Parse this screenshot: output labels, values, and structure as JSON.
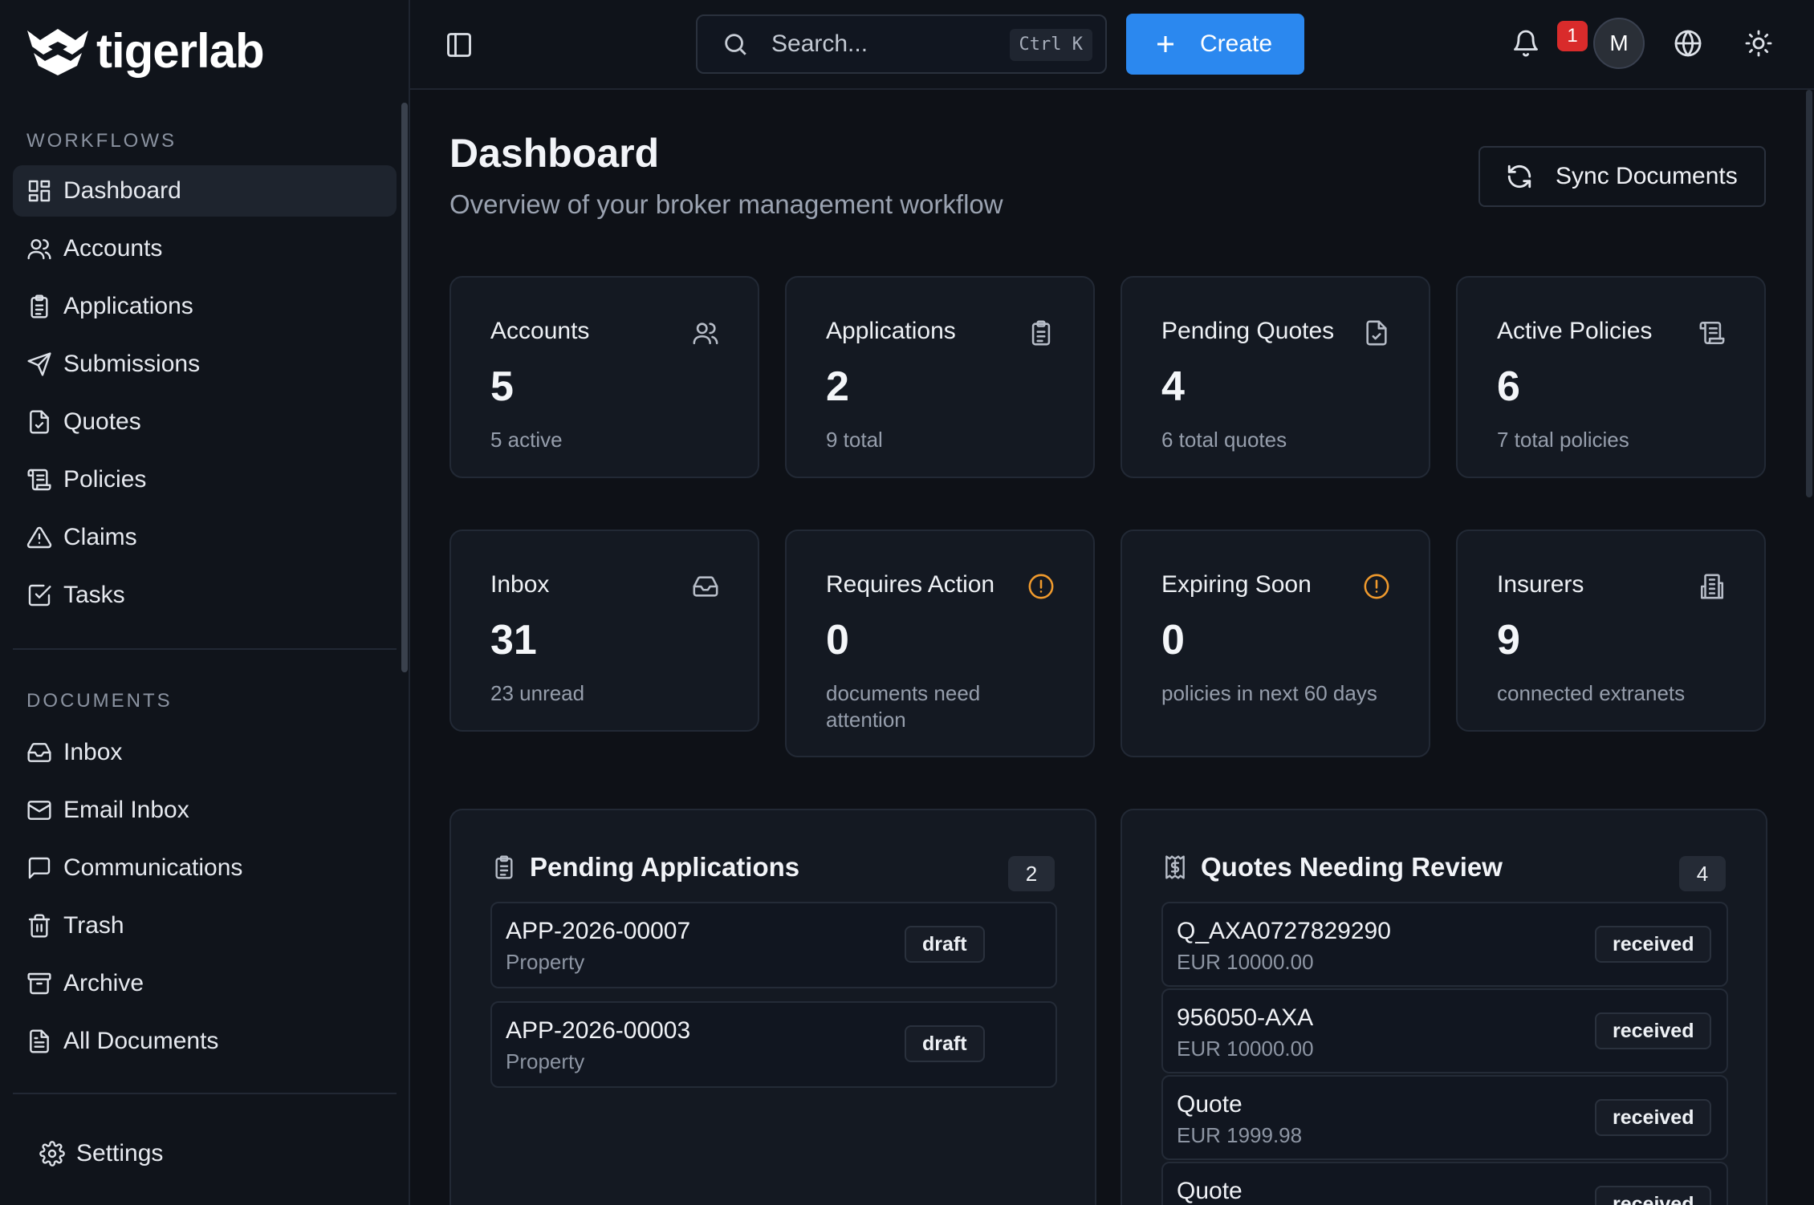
{
  "brand": {
    "name": "tigerlab"
  },
  "sidebar": {
    "workflows_label": "WORKFLOWS",
    "workflows": [
      {
        "label": "Dashboard",
        "icon": "dashboard-icon",
        "active": true
      },
      {
        "label": "Accounts",
        "icon": "users-icon"
      },
      {
        "label": "Applications",
        "icon": "clipboard-icon"
      },
      {
        "label": "Submissions",
        "icon": "send-icon"
      },
      {
        "label": "Quotes",
        "icon": "file-check-icon"
      },
      {
        "label": "Policies",
        "icon": "scroll-icon"
      },
      {
        "label": "Claims",
        "icon": "alert-triangle-icon"
      },
      {
        "label": "Tasks",
        "icon": "check-square-icon"
      }
    ],
    "documents_label": "DOCUMENTS",
    "documents": [
      {
        "label": "Inbox",
        "icon": "inbox-icon"
      },
      {
        "label": "Email Inbox",
        "icon": "mail-icon"
      },
      {
        "label": "Communications",
        "icon": "message-icon"
      },
      {
        "label": "Trash",
        "icon": "trash-icon"
      },
      {
        "label": "Archive",
        "icon": "archive-icon"
      },
      {
        "label": "All Documents",
        "icon": "file-text-icon"
      }
    ],
    "settings_label": "Settings"
  },
  "header": {
    "search_placeholder": "Search...",
    "shortcut": "Ctrl K",
    "create_label": "Create",
    "notification_count": "1",
    "avatar_initial": "M"
  },
  "page": {
    "title": "Dashboard",
    "subtitle": "Overview of your broker management workflow",
    "sync_label": "Sync Documents"
  },
  "stats": [
    {
      "title": "Accounts",
      "value": "5",
      "note": "5 active",
      "icon": "users-icon"
    },
    {
      "title": "Applications",
      "value": "2",
      "note": "9 total",
      "icon": "clipboard-icon"
    },
    {
      "title": "Pending Quotes",
      "value": "4",
      "note": "6 total quotes",
      "icon": "file-check-icon"
    },
    {
      "title": "Active Policies",
      "value": "6",
      "note": "7 total policies",
      "icon": "scroll-icon"
    },
    {
      "title": "Inbox",
      "value": "31",
      "note": "23 unread",
      "icon": "inbox-icon"
    },
    {
      "title": "Requires Action",
      "value": "0",
      "note": "documents need attention",
      "icon": "alert-circle-icon"
    },
    {
      "title": "Expiring Soon",
      "value": "0",
      "note": "policies in next 60 days",
      "icon": "alert-circle-icon"
    },
    {
      "title": "Insurers",
      "value": "9",
      "note": "connected extranets",
      "icon": "building-icon"
    }
  ],
  "pending_applications": {
    "title": "Pending Applications",
    "count": "2",
    "items": [
      {
        "id": "APP-2026-00007",
        "type": "Property",
        "status": "draft"
      },
      {
        "id": "APP-2026-00003",
        "type": "Property",
        "status": "draft"
      }
    ]
  },
  "quotes_review": {
    "title": "Quotes Needing Review",
    "count": "4",
    "items": [
      {
        "name": "Q_AXA0727829290",
        "amount": "EUR 10000.00",
        "status": "received"
      },
      {
        "name": "956050-AXA",
        "amount": "EUR 10000.00",
        "status": "received"
      },
      {
        "name": "Quote",
        "amount": "EUR 1999.98",
        "status": "received"
      },
      {
        "name": "Quote",
        "amount": "",
        "status": "received"
      }
    ]
  },
  "colors": {
    "accent": "#2b88ef",
    "warning": "#f09a2d",
    "danger": "#d92b2b"
  }
}
